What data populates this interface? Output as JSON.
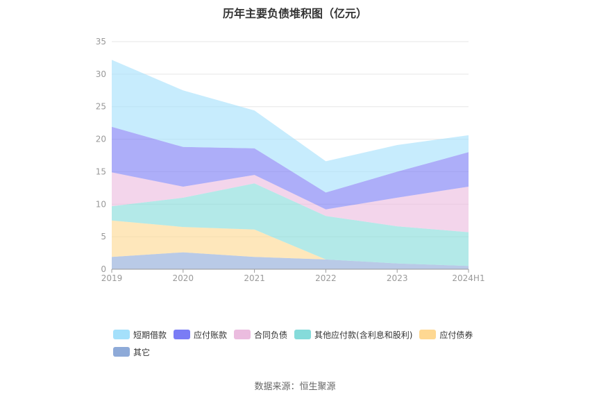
{
  "title": "历年主要负债堆积图（亿元）",
  "source": "数据来源：恒生聚源",
  "chart_data": {
    "type": "area",
    "stacked": true,
    "categories": [
      "2019",
      "2020",
      "2021",
      "2022",
      "2023",
      "2024H1"
    ],
    "ylim": [
      0,
      35
    ],
    "yticks": [
      0,
      5,
      10,
      15,
      20,
      25,
      30,
      35
    ],
    "grid": true,
    "legend_position": "bottom",
    "series": [
      {
        "name": "其它",
        "color": "#8eaad8",
        "values": [
          1.9,
          2.6,
          1.9,
          1.5,
          0.9,
          0.5
        ]
      },
      {
        "name": "应付债券",
        "color": "#fed892",
        "values": [
          5.6,
          3.9,
          4.2,
          0.0,
          0.0,
          0.0
        ]
      },
      {
        "name": "其他应付款(含利息和股利)",
        "color": "#85dbda",
        "values": [
          2.2,
          4.5,
          7.1,
          6.7,
          5.7,
          5.2
        ]
      },
      {
        "name": "合同负债",
        "color": "#ebbcdf",
        "values": [
          5.2,
          1.7,
          1.3,
          1.0,
          4.4,
          7.0
        ]
      },
      {
        "name": "应付账款",
        "color": "#7a7cf5",
        "values": [
          7.0,
          6.1,
          4.1,
          2.6,
          4.0,
          5.3
        ]
      },
      {
        "name": "短期借款",
        "color": "#a4e0fb",
        "values": [
          10.3,
          8.7,
          5.8,
          4.8,
          4.1,
          2.6
        ]
      }
    ]
  },
  "legend": [
    {
      "label": "短期借款",
      "color": "#a4e0fb"
    },
    {
      "label": "应付账款",
      "color": "#7a7cf5"
    },
    {
      "label": "合同负债",
      "color": "#ebbcdf"
    },
    {
      "label": "其他应付款(含利息和股利)",
      "color": "#85dbda"
    },
    {
      "label": "应付债券",
      "color": "#fed892"
    },
    {
      "label": "其它",
      "color": "#8eaad8"
    }
  ]
}
